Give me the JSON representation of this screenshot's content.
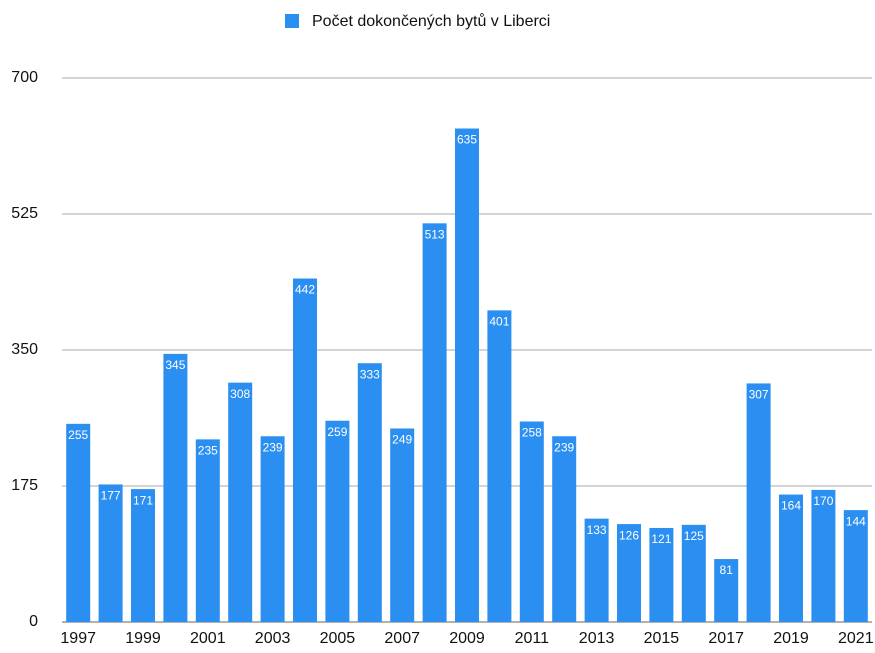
{
  "chart_data": {
    "type": "bar",
    "categories": [
      "1997",
      null,
      "1999",
      null,
      "2001",
      null,
      "2003",
      null,
      "2005",
      null,
      "2007",
      null,
      "2009",
      null,
      "2011",
      null,
      "2013",
      null,
      "2015",
      null,
      "2017",
      null,
      "2019",
      null,
      "2021"
    ],
    "series": [
      {
        "name": "Počet dokončených bytů v Liberci",
        "color": "#2b8ff2",
        "values": [
          255,
          177,
          171,
          345,
          235,
          308,
          239,
          442,
          259,
          333,
          249,
          513,
          635,
          401,
          258,
          239,
          133,
          126,
          121,
          125,
          81,
          307,
          164,
          170,
          144
        ]
      }
    ],
    "ylim": [
      0,
      700
    ],
    "yticks": [
      0,
      175,
      350,
      525,
      700
    ],
    "grid": true,
    "legend": "top"
  }
}
